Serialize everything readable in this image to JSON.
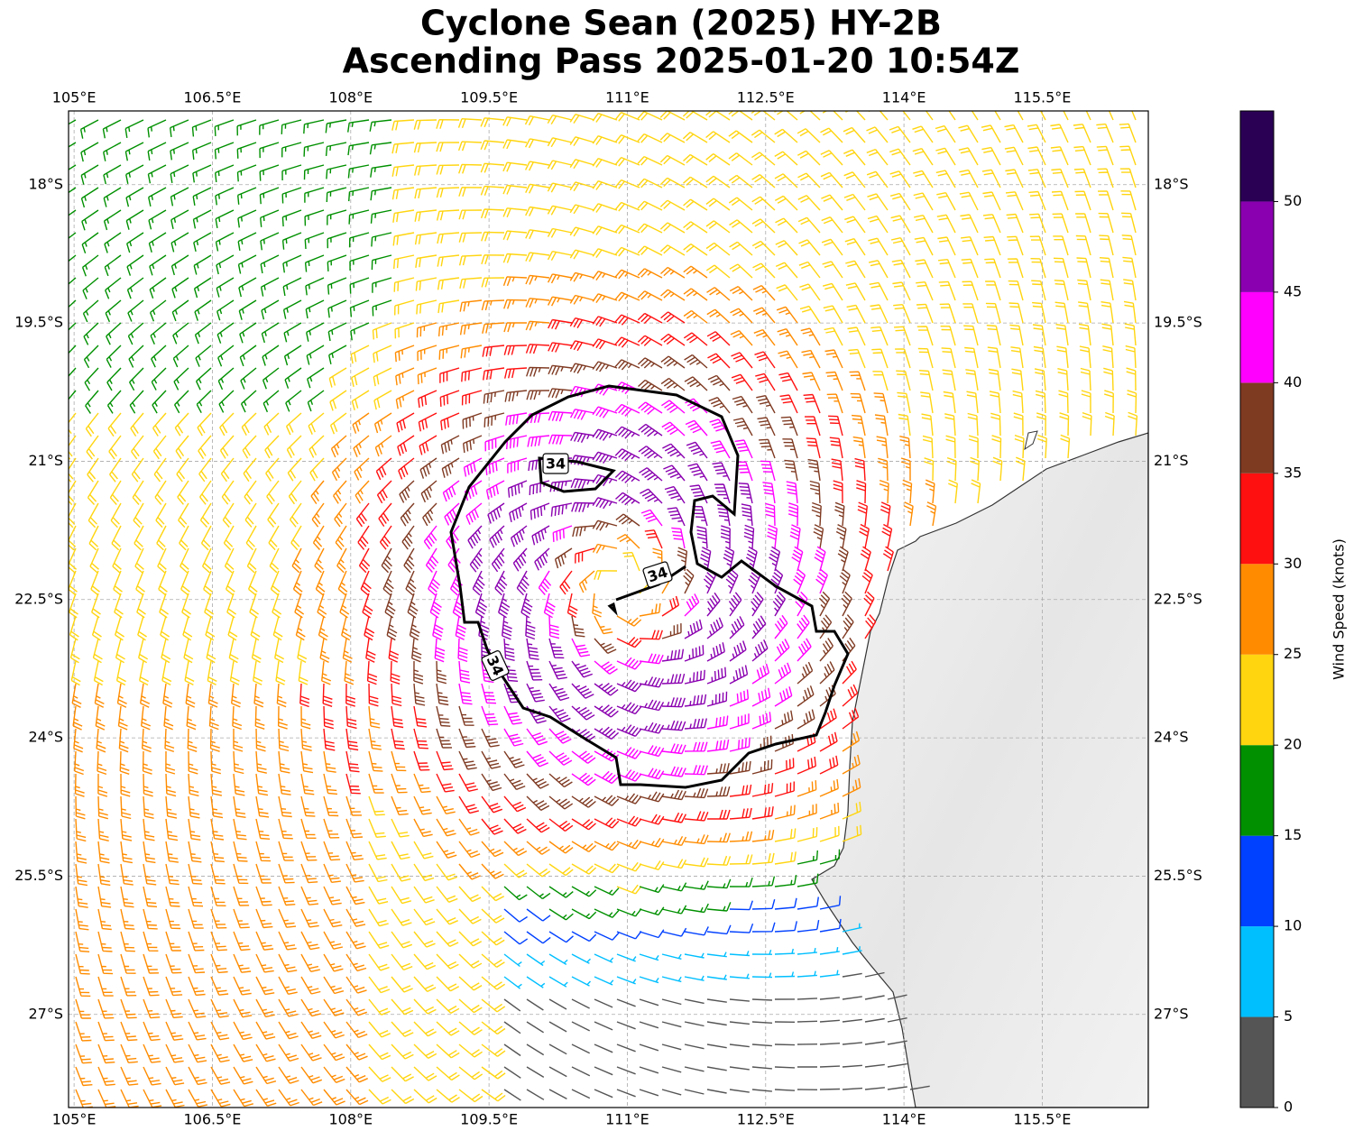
{
  "chart_data": {
    "type": "wind-barb-map",
    "title": [
      "Cyclone Sean (2025) HY-2B",
      "Ascending Pass 2025-01-20 10:54Z"
    ],
    "xlim": [
      104.94,
      116.65
    ],
    "ylim": [
      -28.01,
      -17.2
    ],
    "xticks": [
      {
        "value": 105,
        "label": "105°E"
      },
      {
        "value": 106.5,
        "label": "106.5°E"
      },
      {
        "value": 108,
        "label": "108°E"
      },
      {
        "value": 109.5,
        "label": "109.5°E"
      },
      {
        "value": 111,
        "label": "111°E"
      },
      {
        "value": 112.5,
        "label": "112.5°E"
      },
      {
        "value": 114,
        "label": "114°E"
      },
      {
        "value": 115.5,
        "label": "115.5°E"
      }
    ],
    "yticks": [
      {
        "value": -18,
        "label": "18°S"
      },
      {
        "value": -19.5,
        "label": "19.5°S"
      },
      {
        "value": -21,
        "label": "21°S"
      },
      {
        "value": -22.5,
        "label": "22.5°S"
      },
      {
        "value": -24,
        "label": "24°S"
      },
      {
        "value": -25.5,
        "label": "25.5°S"
      },
      {
        "value": -27,
        "label": "27°S"
      }
    ],
    "grid": true,
    "contour_level": 34,
    "colorbar": {
      "label": "Wind Speed (knots)",
      "lim": [
        0,
        55
      ],
      "ticks": [
        0,
        5,
        10,
        15,
        20,
        25,
        30,
        35,
        40,
        45,
        50
      ],
      "colors": [
        "#555555",
        "#00bfff",
        "#0040ff",
        "#009000",
        "#ffd510",
        "#ff8c00",
        "#ff1010",
        "#7f3a22",
        "#ff00ff",
        "#8a00b0",
        "#2a0055"
      ]
    }
  }
}
